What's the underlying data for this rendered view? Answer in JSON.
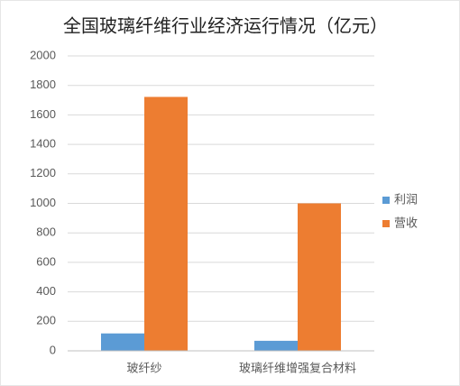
{
  "chart_data": {
    "type": "bar",
    "title": "全国玻璃纤维行业经济运行情况（亿元）",
    "categories": [
      "玻纤纱",
      "玻璃纤维增强复合材料"
    ],
    "series": [
      {
        "name": "利润",
        "color": "#5b9bd5",
        "values": [
          118,
          68
        ]
      },
      {
        "name": "营收",
        "color": "#ed7d31",
        "values": [
          1722,
          1000
        ]
      }
    ],
    "ylim": [
      0,
      2000
    ],
    "yticks": [
      0,
      200,
      400,
      600,
      800,
      1000,
      1200,
      1400,
      1600,
      1800,
      2000
    ],
    "grid": true,
    "legend": "right"
  }
}
